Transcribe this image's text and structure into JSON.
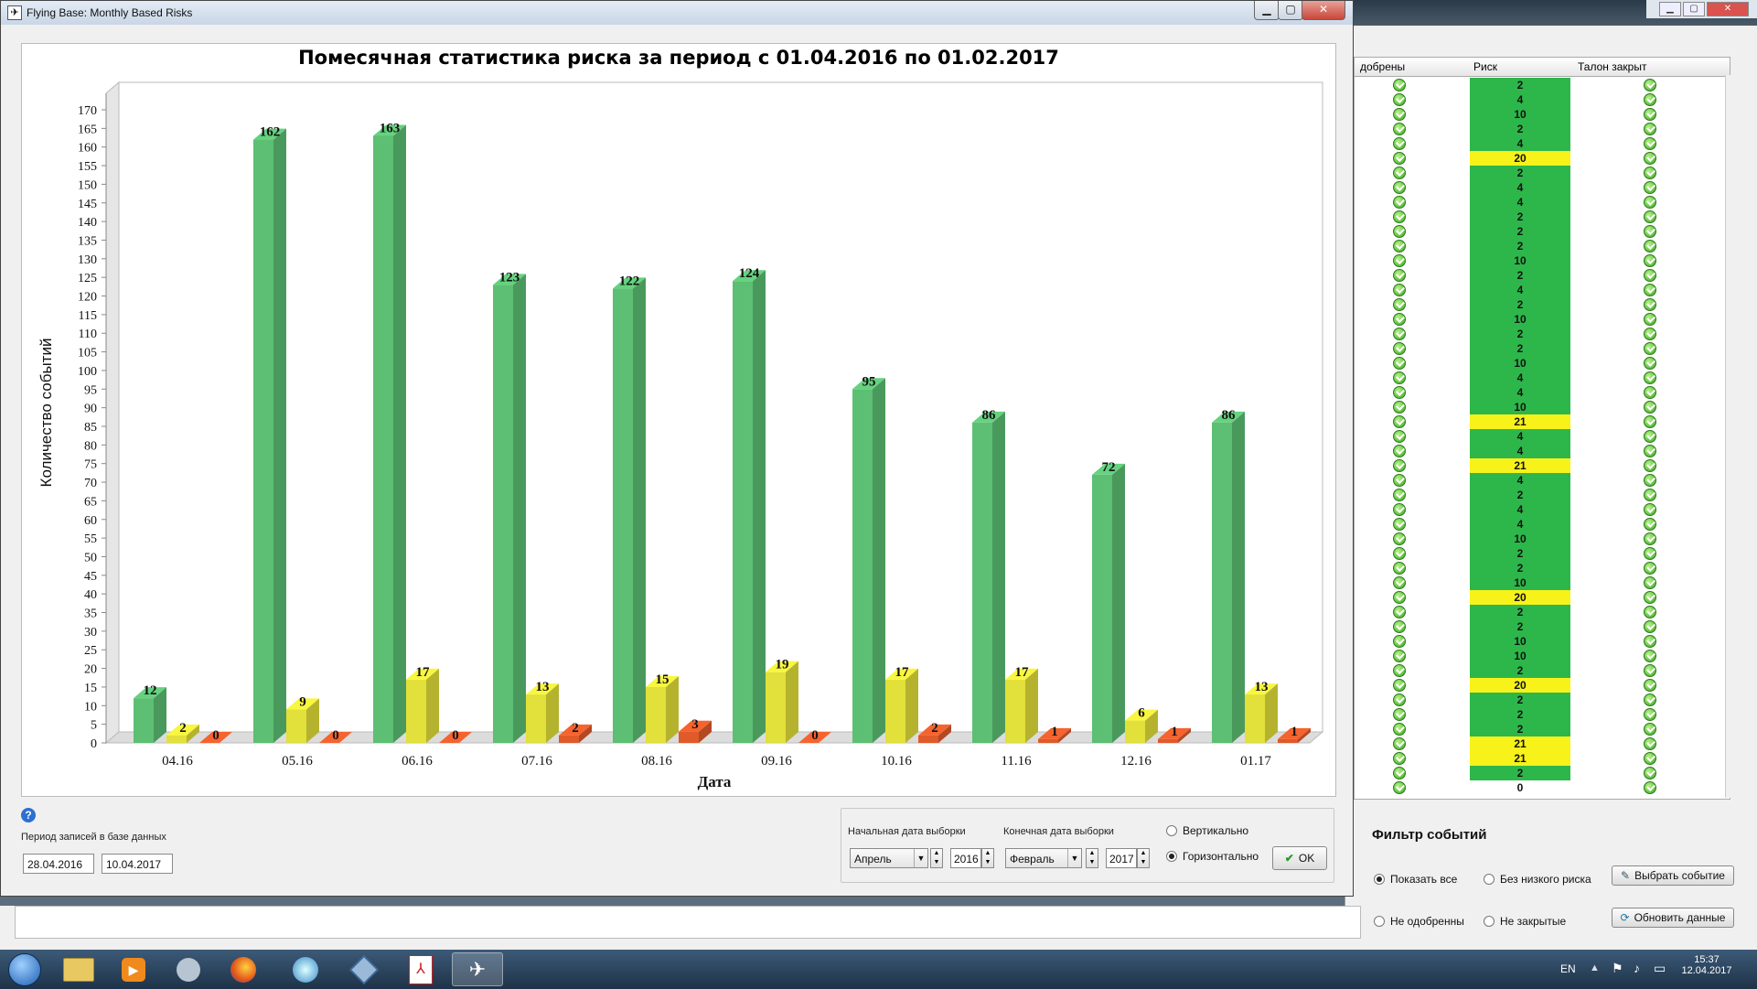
{
  "window": {
    "title": "Flying Base: Monthly Based Risks",
    "min": "▁",
    "max": "▢",
    "close": "✕"
  },
  "chart_data": {
    "type": "bar",
    "title": "Помесячная статистика риска за период с 01.04.2016 по 01.02.2017",
    "xlabel": "Дата",
    "ylabel": "Количество событий",
    "categories": [
      "04.16",
      "05.16",
      "06.16",
      "07.16",
      "08.16",
      "09.16",
      "10.16",
      "11.16",
      "12.16",
      "01.17"
    ],
    "series": [
      {
        "values": [
          12,
          162,
          163,
          123,
          122,
          124,
          95,
          86,
          72,
          86
        ],
        "color": "#5cbf73"
      },
      {
        "values": [
          2,
          9,
          17,
          13,
          15,
          19,
          17,
          17,
          6,
          13
        ],
        "color": "#e2e03a"
      },
      {
        "values": [
          0,
          0,
          0,
          2,
          3,
          0,
          2,
          1,
          1,
          1
        ],
        "color": "#e05a2a"
      }
    ],
    "ylim": [
      0,
      170
    ],
    "ytick_step": 5,
    "grid": false,
    "legend": "none"
  },
  "db_period": {
    "label": "Период записей в базе данных",
    "from": "28.04.2016",
    "to": "10.04.2017"
  },
  "selection": {
    "start_label": "Начальная дата выборки",
    "end_label": "Конечная дата выборки",
    "start_month": "Апрель",
    "start_year": "2016",
    "end_month": "Февраль",
    "end_year": "2017",
    "vertical": "Вертикально",
    "horizontal": "Горизонтально",
    "ok": "OK"
  },
  "table": {
    "headers": [
      "добрены",
      "Риск",
      "Талон закрыт"
    ],
    "risk_values": [
      "2",
      "4",
      "10",
      "2",
      "4",
      "20",
      "2",
      "4",
      "4",
      "2",
      "2",
      "2",
      "10",
      "2",
      "4",
      "2",
      "10",
      "2",
      "2",
      "10",
      "4",
      "4",
      "10",
      "21",
      "4",
      "4",
      "21",
      "4",
      "2",
      "4",
      "4",
      "10",
      "2",
      "2",
      "10",
      "20",
      "2",
      "2",
      "10",
      "10",
      "2",
      "20",
      "2",
      "2",
      "2",
      "21",
      "21",
      "2",
      "0"
    ]
  },
  "filter": {
    "title": "Фильтр событий",
    "show_all": "Показать все",
    "no_low_risk": "Без низкого риска",
    "not_approved": "Не одобренны",
    "not_closed": "Не закрытые",
    "choose_event": "Выбрать событие",
    "refresh": "Обновить данные"
  },
  "tray": {
    "lang": "EN",
    "time": "15:37",
    "date": "12.04.2017"
  },
  "colors": {
    "green": "#2db74a",
    "yellow": "#f7f21a",
    "empty": "#ffffff"
  }
}
